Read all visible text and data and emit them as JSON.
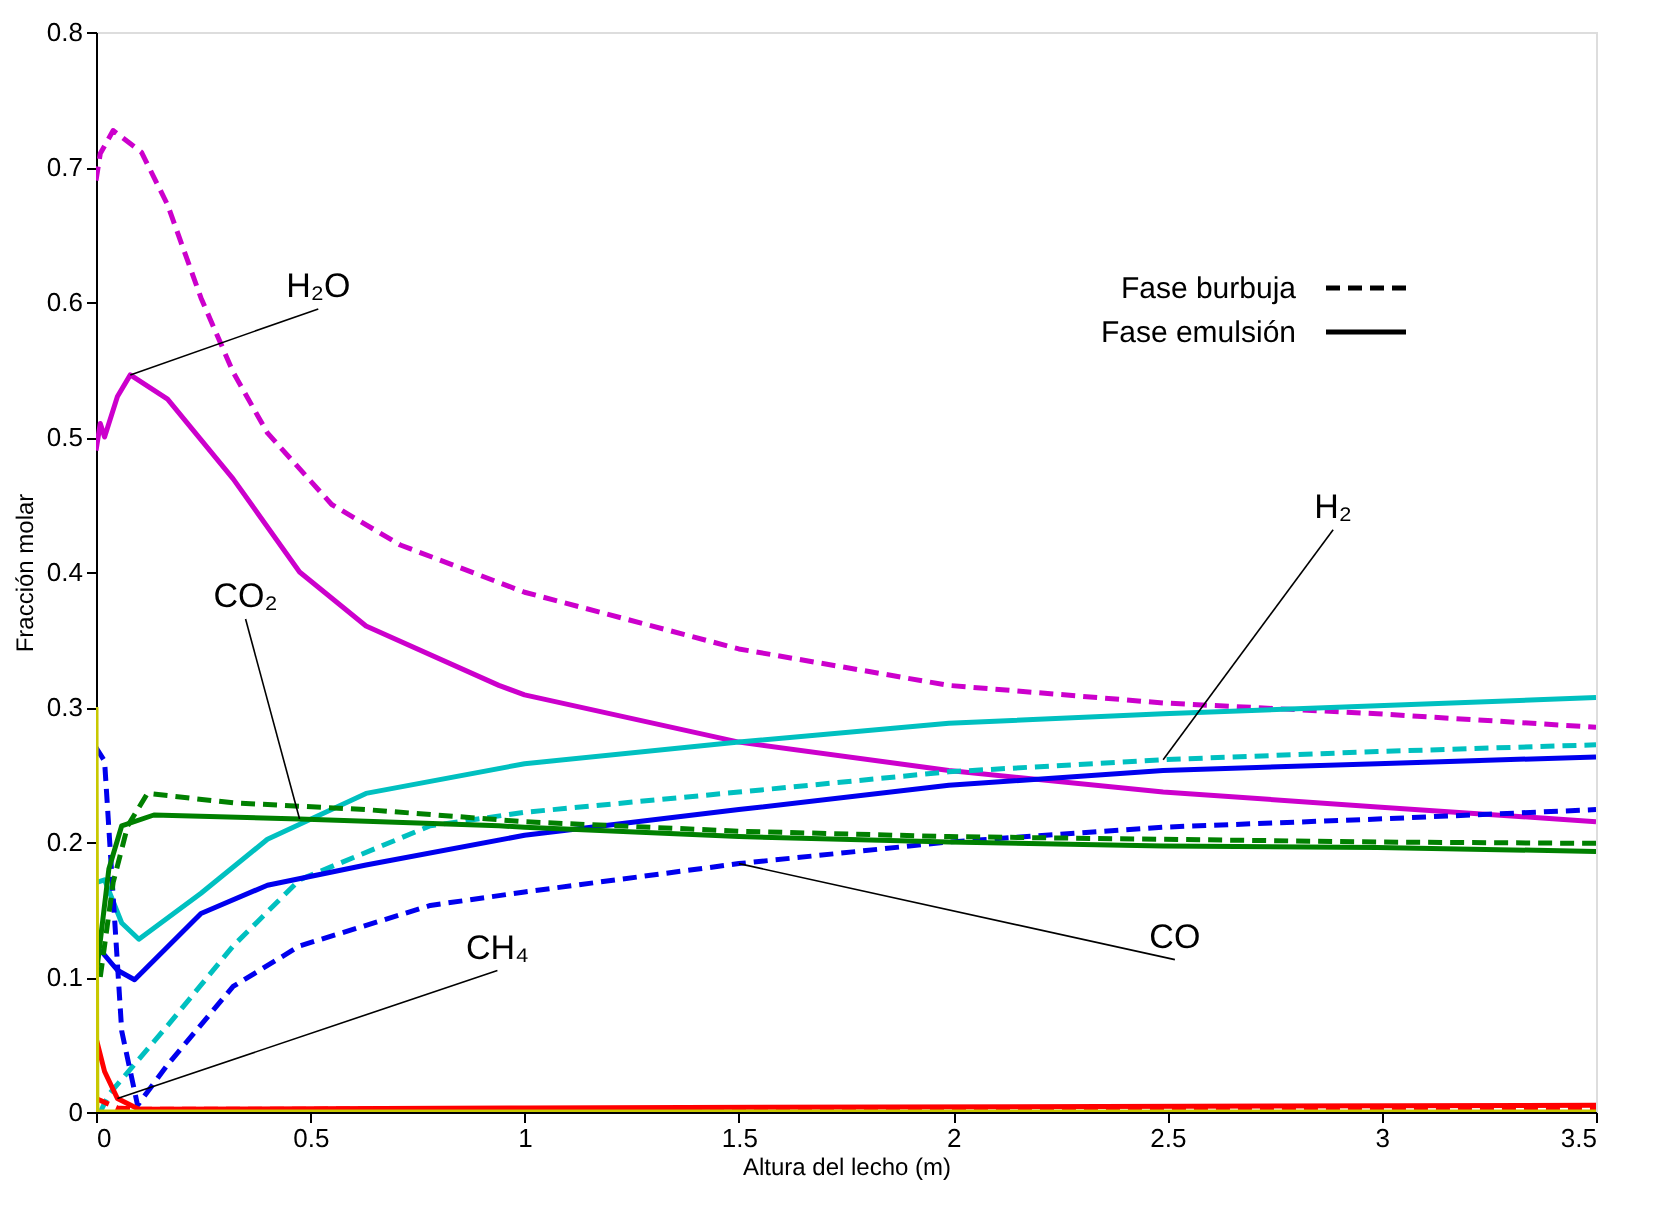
{
  "chart_data": {
    "type": "line",
    "xlabel": "Altura del lecho (m)",
    "ylabel": "Fracción molar",
    "xlim": [
      0,
      3.5
    ],
    "xticks": [
      0,
      0.5,
      1,
      1.5,
      2,
      2.5,
      3,
      3.5
    ],
    "ylim": [
      0,
      0.8
    ],
    "yticks": [
      0,
      0.1,
      0.2,
      0.3,
      0.4,
      0.5,
      0.6,
      0.7,
      0.8
    ],
    "grid": false,
    "marker": "none",
    "series": [
      {
        "color": "#cc00cc",
        "line_style": "dashed",
        "x": [
          0,
          0.01,
          0.04,
          0.106,
          0.167,
          0.245,
          0.32,
          0.4,
          0.55,
          0.71,
          1.0,
          1.5,
          1.99,
          2.49,
          2.99,
          3.5
        ],
        "values": [
          0.69,
          0.71,
          0.727,
          0.711,
          0.672,
          0.603,
          0.548,
          0.503,
          0.45,
          0.42,
          0.385,
          0.343,
          0.316,
          0.303,
          0.295,
          0.285
        ]
      },
      {
        "color": "#cc00cc",
        "line_style": "solid",
        "x": [
          0,
          0.01,
          0.02,
          0.05,
          0.08,
          0.167,
          0.32,
          0.475,
          0.63,
          0.94,
          1.0,
          1.5,
          1.99,
          2.49,
          2.99,
          3.5
        ],
        "values": [
          0.49,
          0.51,
          0.5,
          0.53,
          0.546,
          0.528,
          0.469,
          0.4,
          0.36,
          0.316,
          0.309,
          0.274,
          0.253,
          0.237,
          0.226,
          0.215
        ]
      },
      {
        "color": "#00c0c0",
        "line_style": "solid",
        "x": [
          0,
          0.02,
          0.06,
          0.1,
          0.245,
          0.4,
          0.63,
          1.0,
          1.5,
          1.99,
          2.49,
          2.99,
          3.5
        ],
        "values": [
          0.17,
          0.172,
          0.14,
          0.128,
          0.162,
          0.202,
          0.236,
          0.258,
          0.274,
          0.288,
          0.295,
          0.301,
          0.307
        ]
      },
      {
        "color": "#00c0c0",
        "line_style": "dashed",
        "x": [
          0.01,
          0.03,
          0.167,
          0.32,
          0.475,
          0.78,
          1.0,
          1.5,
          1.99,
          2.49,
          2.99,
          3.5
        ],
        "values": [
          0.0,
          0.013,
          0.064,
          0.123,
          0.172,
          0.212,
          0.222,
          0.237,
          0.252,
          0.261,
          0.267,
          0.272
        ]
      },
      {
        "color": "#0000ee",
        "line_style": "solid",
        "x": [
          0.01,
          0.05,
          0.09,
          0.245,
          0.4,
          0.63,
          1.0,
          1.5,
          1.99,
          2.49,
          2.99,
          3.5
        ],
        "values": [
          0.12,
          0.105,
          0.098,
          0.147,
          0.168,
          0.183,
          0.205,
          0.224,
          0.242,
          0.253,
          0.258,
          0.263
        ]
      },
      {
        "color": "#0000ee",
        "line_style": "dashed",
        "x": [
          0,
          0.02,
          0.06,
          0.097,
          0.167,
          0.32,
          0.475,
          0.78,
          1.0,
          1.5,
          1.99,
          2.49,
          2.99,
          3.5
        ],
        "values": [
          0.27,
          0.26,
          0.06,
          0.005,
          0.035,
          0.093,
          0.123,
          0.153,
          0.163,
          0.184,
          0.2,
          0.211,
          0.217,
          0.224
        ]
      },
      {
        "color": "#008000",
        "line_style": "solid",
        "x": [
          0,
          0.03,
          0.06,
          0.135,
          0.475,
          0.94,
          1.0,
          1.5,
          1.99,
          2.49,
          2.99,
          3.5
        ],
        "values": [
          0.1,
          0.18,
          0.212,
          0.22,
          0.217,
          0.212,
          0.211,
          0.204,
          0.2,
          0.197,
          0.196,
          0.193
        ]
      },
      {
        "color": "#008000",
        "line_style": "dashed",
        "x": [
          0.01,
          0.04,
          0.074,
          0.12,
          0.32,
          0.63,
          1.0,
          1.5,
          1.99,
          2.49,
          2.99,
          3.5
        ],
        "values": [
          0.1,
          0.17,
          0.212,
          0.236,
          0.229,
          0.224,
          0.215,
          0.208,
          0.204,
          0.202,
          0.2,
          0.199
        ]
      },
      {
        "color": "#ff0000",
        "line_style": "solid",
        "x": [
          0,
          0.02,
          0.05,
          0.1,
          1.0,
          3.5
        ],
        "values": [
          0.055,
          0.03,
          0.01,
          0.002,
          0.003,
          0.005
        ]
      },
      {
        "color": "#ff0000",
        "line_style": "dashed",
        "x": [
          0,
          0.05,
          0.1,
          3.5
        ],
        "values": [
          0.01,
          0.003,
          0.002,
          0.003
        ]
      },
      {
        "color": "#c8c800",
        "line_style": "solid",
        "x": [
          0,
          0.002,
          3.5
        ],
        "values": [
          0.3,
          0.0,
          0.0
        ]
      }
    ],
    "annotations": [
      {
        "text": "H₂O",
        "x": 0.08,
        "y": 0.546
      },
      {
        "text": "CO₂",
        "x": 0.475,
        "y": 0.217
      },
      {
        "text": "CH₄",
        "x": 0.05,
        "y": 0.01
      },
      {
        "text": "H₂",
        "x": 2.49,
        "y": 0.261
      },
      {
        "text": "CO",
        "x": 1.5,
        "y": 0.184
      },
      "Fase burbuja",
      "Fase emulsión"
    ]
  }
}
